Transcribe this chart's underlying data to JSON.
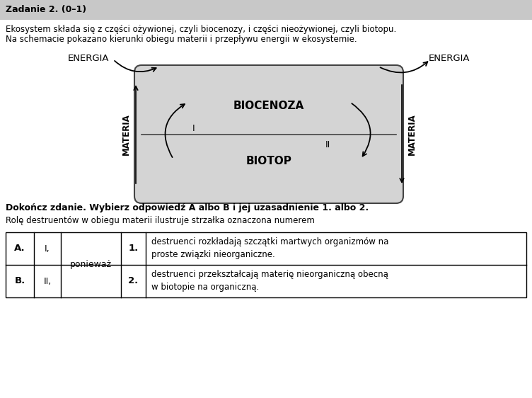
{
  "title_bold": "Zadanie 2. (0–1)",
  "desc_line1": "Ekosystem składa się z części ożywionej, czyli biocenozy, i części nieożywionej, czyli biotopu.",
  "desc_line2": "Na schemacie pokazano kierunki obiegu materii i przepływu energii w ekosystemie.",
  "energia_left": "ENERGIA",
  "energia_right": "ENERGIA",
  "biocenoza": "BIOCENOZA",
  "biotop": "BIOTOP",
  "materia_left": "MATERIA",
  "materia_right": "MATERIA",
  "label_I": "I",
  "label_II": "II",
  "box_fill": "#d4d4d4",
  "box_edge": "#444444",
  "bg_color": "#ffffff",
  "header_bg": "#c8c8c8",
  "bold_text": "Dokończ zdanie. Wybierz odpowiedź A albo B i jej uzasadnienie 1. albo 2.",
  "role_text": "Rolę destruentów w obiegu materii ilustruje strzałka oznaczona numerem",
  "row_A_letter": "A.",
  "row_A_num": "I,",
  "row_B_letter": "B.",
  "row_B_num": "II,",
  "poniewaz": "ponieważ",
  "col1_num": "1.",
  "col1_text_line1": "destruenci rozkładają szczątki martwych organizmów na",
  "col1_text_line2": "proste związki nieorganiczne.",
  "col2_num": "2.",
  "col2_text_line1": "destruenci przekształcają materię nieorganiczną obecną",
  "col2_text_line2": "w biotopie na organiczną."
}
